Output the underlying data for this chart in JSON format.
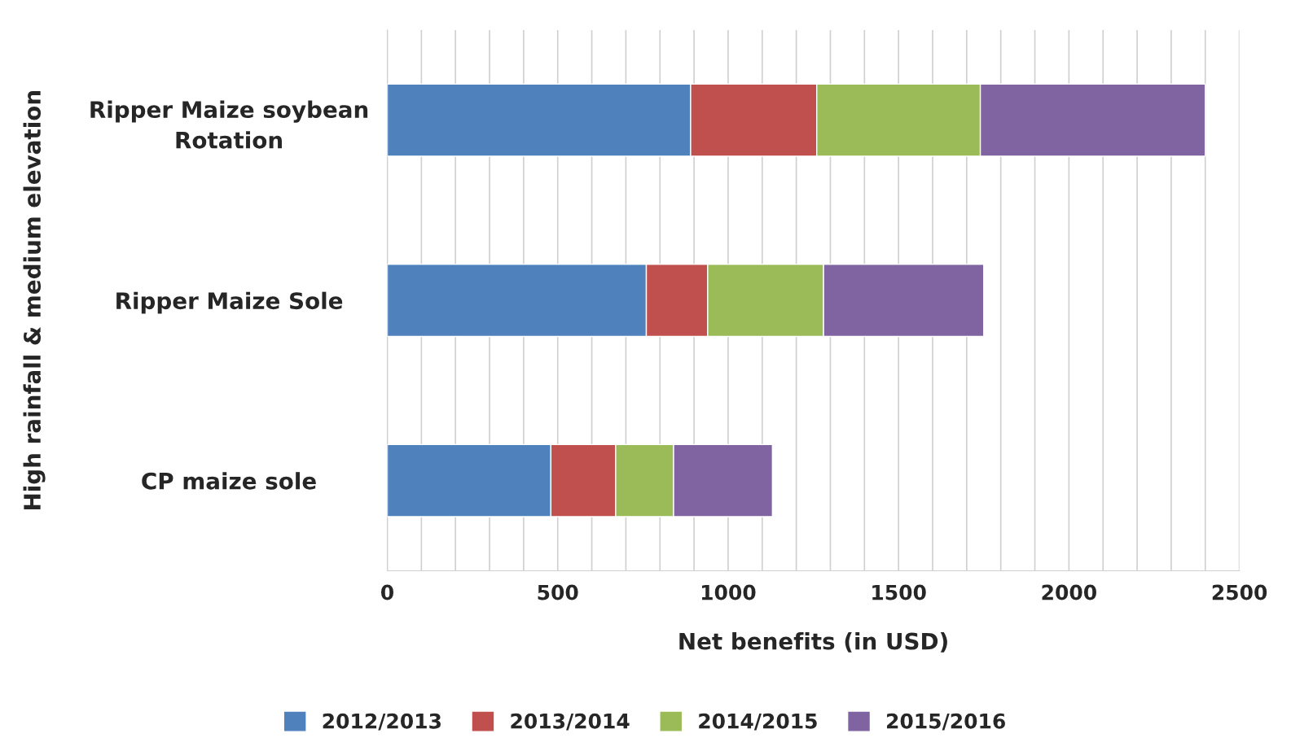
{
  "chart_data": {
    "type": "bar",
    "orientation": "horizontal",
    "stacked": true,
    "categories": [
      "Ripper Maize soybean\nRotation",
      "Ripper Maize Sole",
      "CP maize sole"
    ],
    "series": [
      {
        "name": "2012/2013",
        "color": "#4f81bd",
        "values": [
          890,
          760,
          480
        ]
      },
      {
        "name": "2013/2014",
        "color": "#c0504d",
        "values": [
          370,
          180,
          190
        ]
      },
      {
        "name": "2014/2015",
        "color": "#9bbb59",
        "values": [
          480,
          340,
          170
        ]
      },
      {
        "name": "2015/2016",
        "color": "#8064a2",
        "values": [
          660,
          470,
          290
        ]
      }
    ],
    "xlabel": "Net benefits (in USD)",
    "ylabel": "High rainfall & medium elevation",
    "xlim": [
      0,
      2500
    ],
    "xticks": [
      0,
      {
        "value": 100,
        "label": null
      },
      {
        "value": 200,
        "label": null
      },
      {
        "value": 300,
        "label": null
      },
      {
        "value": 400,
        "label": null
      },
      500,
      {
        "value": 600,
        "label": null
      },
      {
        "value": 700,
        "label": null
      },
      {
        "value": 800,
        "label": null
      },
      {
        "value": 900,
        "label": null
      },
      1000,
      {
        "value": 1100,
        "label": null
      },
      {
        "value": 1200,
        "label": null
      },
      {
        "value": 1300,
        "label": null
      },
      {
        "value": 1400,
        "label": null
      },
      1500,
      {
        "value": 1600,
        "label": null
      },
      {
        "value": 1700,
        "label": null
      },
      {
        "value": 1800,
        "label": null
      },
      {
        "value": 1900,
        "label": null
      },
      2000,
      {
        "value": 2100,
        "label": null
      },
      {
        "value": 2200,
        "label": null
      },
      {
        "value": 2300,
        "label": null
      },
      {
        "value": 2400,
        "label": null
      },
      2500
    ],
    "grid": "x",
    "legend": "bottom"
  }
}
